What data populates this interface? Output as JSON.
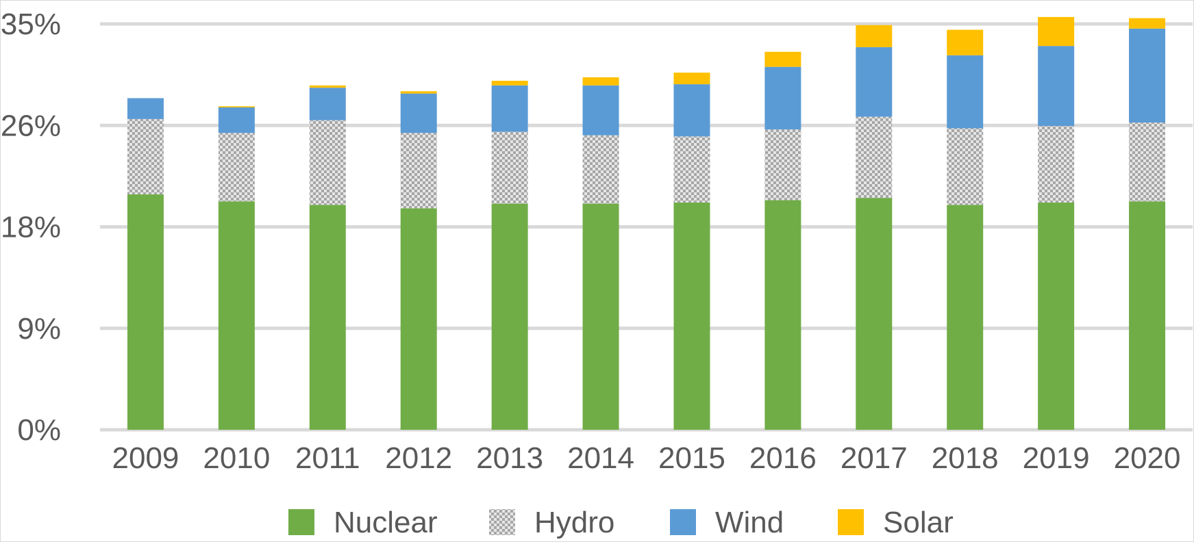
{
  "chart_data": {
    "type": "bar",
    "stacked": true,
    "categories": [
      "2009",
      "2010",
      "2011",
      "2012",
      "2013",
      "2014",
      "2015",
      "2016",
      "2017",
      "2018",
      "2019",
      "2020"
    ],
    "series": [
      {
        "name": "Nuclear",
        "color": "#70ad47",
        "pattern": "solid",
        "values": [
          20.3,
          19.7,
          19.4,
          19.1,
          19.5,
          19.5,
          19.6,
          19.8,
          20.0,
          19.4,
          19.6,
          19.7
        ]
      },
      {
        "name": "Hydro",
        "color": "#bfbfbf",
        "pattern": "checker",
        "values": [
          6.5,
          5.9,
          7.3,
          6.5,
          6.2,
          5.9,
          5.7,
          6.1,
          7.0,
          6.6,
          6.6,
          6.8
        ]
      },
      {
        "name": "Wind",
        "color": "#5b9bd5",
        "pattern": "solid",
        "values": [
          1.8,
          2.2,
          2.8,
          3.4,
          4.0,
          4.3,
          4.5,
          5.4,
          6.0,
          6.3,
          6.9,
          8.1
        ]
      },
      {
        "name": "Solar",
        "color": "#ffc000",
        "pattern": "solid",
        "values": [
          0.0,
          0.1,
          0.2,
          0.2,
          0.4,
          0.7,
          1.0,
          1.3,
          1.9,
          2.2,
          2.5,
          0.9
        ]
      }
    ],
    "y_ticks": [
      "0%",
      "9%",
      "18%",
      "26%",
      "35%"
    ],
    "y_tick_values": [
      0,
      8.75,
      17.5,
      26.25,
      35
    ],
    "ylim": [
      0,
      35
    ],
    "title": "",
    "xlabel": "",
    "ylabel": "",
    "grid": true,
    "legend_position": "bottom"
  }
}
